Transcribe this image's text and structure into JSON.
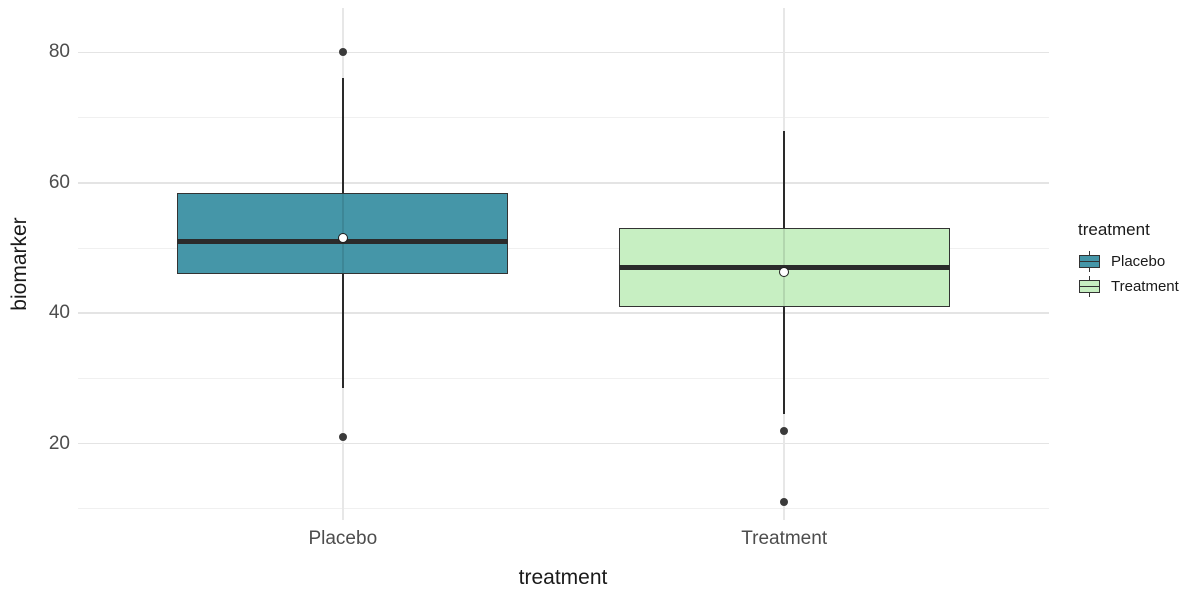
{
  "chart_data": {
    "type": "boxplot",
    "title": "",
    "xlabel": "treatment",
    "ylabel": "biomarker",
    "categories": [
      "Placebo",
      "Treatment"
    ],
    "y_ticks": [
      20,
      40,
      60,
      80
    ],
    "y_minor_ticks": [
      10,
      30,
      50,
      70
    ],
    "ylim": [
      8.3,
      86.8
    ],
    "grid": true,
    "legend": {
      "title": "treatment",
      "position": "right",
      "entries": [
        {
          "label": "Placebo",
          "fill": "#4596a8"
        },
        {
          "label": "Treatment",
          "fill": "#c7efc2"
        }
      ]
    },
    "series": [
      {
        "name": "Placebo",
        "fill": "#4596a8",
        "whisker_low": 28.5,
        "q1": 46,
        "median": 51,
        "q3": 58.5,
        "whisker_high": 76,
        "mean": 51.6,
        "outliers": [
          80,
          21
        ]
      },
      {
        "name": "Treatment",
        "fill": "#c7efc2",
        "whisker_low": 24.5,
        "q1": 41,
        "median": 47,
        "q3": 53,
        "whisker_high": 68,
        "mean": 46.3,
        "outliers": [
          22,
          11
        ]
      }
    ]
  },
  "colors": {
    "background": "#ffffff",
    "grid_major": "#e4e4e4",
    "grid_minor": "#f0f0f0",
    "box_border": "#333333",
    "median_line": "#2b2b2b",
    "outlier": "#3a3a3a",
    "mean_fill": "#ffffff",
    "axis_text": "#4d4d4d",
    "axis_title": "#1a1a1a"
  }
}
